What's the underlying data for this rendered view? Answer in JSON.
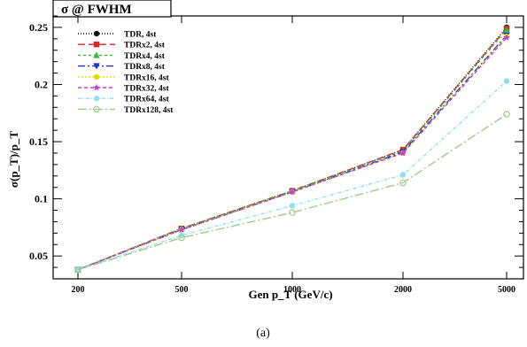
{
  "chart_data": {
    "type": "line",
    "title": "σ @ FWHM",
    "xlabel": "Gen p_T (GeV/c)",
    "ylabel": "σ(p_T)/p_T",
    "caption": "(a)",
    "categories": [
      "200",
      "500",
      "1000",
      "2000",
      "5000"
    ],
    "ylim": [
      0.03,
      0.26
    ],
    "yticks": [
      "0.05",
      "0.1",
      "0.15",
      "0.2",
      "0.25"
    ],
    "ytick_values": [
      0.05,
      0.1,
      0.15,
      0.2,
      0.25
    ],
    "legend_position": "top-left",
    "grid": false,
    "series": [
      {
        "name": "TDR, 4st",
        "color": "#111111",
        "dash": "1,2",
        "marker": "circle",
        "values": [
          0.038,
          0.074,
          0.107,
          0.143,
          0.25
        ]
      },
      {
        "name": "TDRx2, 4st",
        "color": "#dd2222",
        "dash": "8,4",
        "marker": "square",
        "values": [
          0.038,
          0.074,
          0.107,
          0.143,
          0.249
        ]
      },
      {
        "name": "TDRx4, 4st",
        "color": "#33bb33",
        "dash": "3,3",
        "marker": "triangle-up",
        "values": [
          0.038,
          0.074,
          0.107,
          0.142,
          0.248
        ]
      },
      {
        "name": "TDRx8, 4st",
        "color": "#1f2fd0",
        "dash": "8,3,2,3",
        "marker": "triangle-down",
        "values": [
          0.038,
          0.073,
          0.106,
          0.141,
          0.243
        ]
      },
      {
        "name": "TDRx16, 4st",
        "color": "#e0e000",
        "dash": "2,2",
        "marker": "circle",
        "values": [
          0.038,
          0.073,
          0.106,
          0.14,
          0.242
        ]
      },
      {
        "name": "TDRx32, 4st",
        "color": "#c040e0",
        "dash": "4,3",
        "marker": "star",
        "values": [
          0.038,
          0.073,
          0.106,
          0.14,
          0.241
        ]
      },
      {
        "name": "TDRx64, 4st",
        "color": "#8fe0f0",
        "dash": "4,2,1,2",
        "marker": "circle",
        "values": [
          0.038,
          0.068,
          0.094,
          0.121,
          0.203
        ]
      },
      {
        "name": "TDRx128, 4st",
        "color": "#9ccc8c",
        "dash": "10,3,2,3",
        "marker": "circle-open",
        "values": [
          0.038,
          0.066,
          0.088,
          0.114,
          0.174
        ]
      }
    ]
  }
}
